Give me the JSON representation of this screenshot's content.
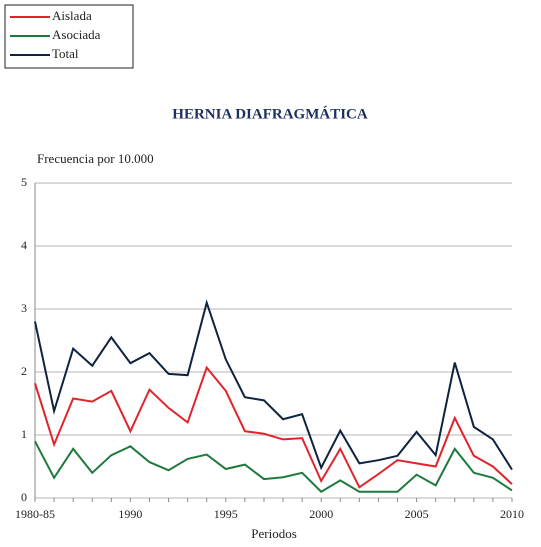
{
  "chart_data": {
    "type": "line",
    "title": "HERNIA DIAFRAGMÁTICA",
    "subtitle": "Frecuencia por 10.000",
    "x_label": "Periodos",
    "categories": [
      "1980-85",
      null,
      null,
      null,
      null,
      "1990",
      null,
      null,
      null,
      null,
      "1995",
      null,
      null,
      null,
      null,
      "2000",
      null,
      null,
      null,
      null,
      "2005",
      null,
      null,
      null,
      null,
      "2010"
    ],
    "series": [
      {
        "name": "Aislada",
        "color": "#e0242b",
        "values": [
          1.82,
          0.85,
          1.58,
          1.53,
          1.7,
          1.06,
          1.72,
          1.43,
          1.2,
          2.07,
          1.7,
          1.06,
          1.02,
          0.93,
          0.95,
          0.27,
          0.78,
          0.17,
          0.38,
          0.6,
          0.55,
          0.5,
          1.27,
          0.67,
          0.5,
          0.22
        ]
      },
      {
        "name": "Asociada",
        "color": "#1e7a3c",
        "values": [
          0.9,
          0.32,
          0.78,
          0.4,
          0.68,
          0.82,
          0.57,
          0.44,
          0.62,
          0.69,
          0.46,
          0.53,
          0.3,
          0.33,
          0.4,
          0.1,
          0.28,
          0.1,
          0.1,
          0.1,
          0.37,
          0.2,
          0.78,
          0.4,
          0.32,
          0.12
        ]
      },
      {
        "name": "Total",
        "color": "#0d2340",
        "values": [
          2.8,
          1.38,
          2.37,
          2.1,
          2.55,
          2.14,
          2.3,
          1.97,
          1.95,
          3.1,
          2.2,
          1.6,
          1.55,
          1.25,
          1.33,
          0.48,
          1.07,
          0.55,
          0.6,
          0.67,
          1.05,
          0.68,
          2.15,
          1.13,
          0.93,
          0.45
        ]
      }
    ],
    "ylim": [
      0,
      5
    ],
    "yticks": [
      0,
      1,
      2,
      3,
      4,
      5
    ],
    "grid": true,
    "legend": "top-left"
  }
}
